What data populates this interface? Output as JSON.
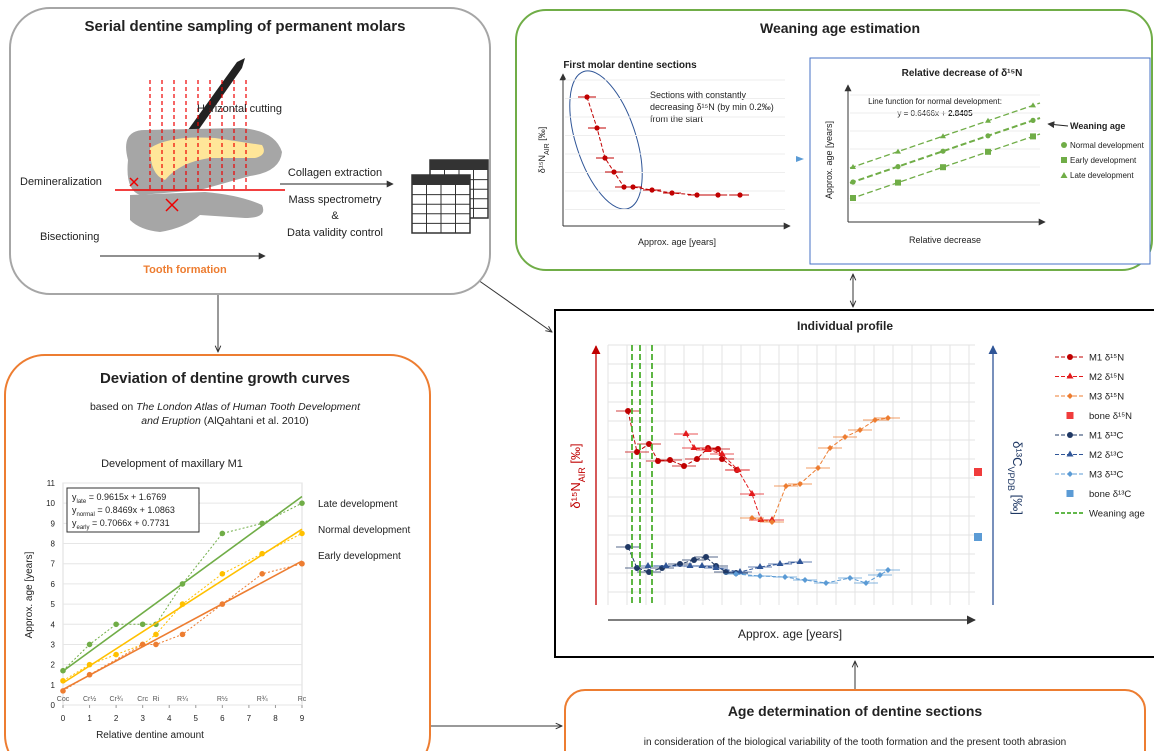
{
  "sampling": {
    "title": "Serial dentine sampling of permanent molars",
    "cutting": "Horizontal cutting",
    "demineralization": "Demineralization",
    "bisectioning": "Bisectioning",
    "formation": "Tooth formation",
    "steps": [
      "Collagen extraction",
      "Mass spectrometry",
      "&",
      "Data validity control"
    ]
  },
  "weaning": {
    "title": "Weaning age estimation",
    "left": {
      "title": "First molar dentine sections",
      "y_label": {
        "main": "δ¹⁵N",
        "sub": "AIR",
        "unit": " [‰]"
      },
      "note": [
        "Sections with constantly",
        "decreasing δ¹⁵N (by min 0.2‰)",
        "from the start"
      ],
      "x_label": "Approx. age [years]"
    },
    "right": {
      "title": "Relative decrease of δ¹⁵N",
      "function": [
        "Line function for normal development:",
        "y = 0.6466x + ",
        "2.8405"
      ],
      "weaning_age": "Weaning age",
      "legend": [
        "Normal development",
        "Early development",
        "Late development"
      ],
      "x_label": "Relative decrease",
      "y_label": "Approx. age [years]"
    }
  },
  "deviation": {
    "title": "Deviation of dentine growth curves",
    "source": [
      "based on ",
      "The London Atlas of Human Tooth Development",
      "and Eruption",
      " (AlQahtani et al. 2010)"
    ],
    "growth_chart": {
      "type": "scatter",
      "title": "Development of maxillary M1",
      "x_label": "Relative dentine amount",
      "y_label": "Approx. age [years]",
      "xlim": [
        0,
        9
      ],
      "ylim": [
        0,
        11
      ],
      "xticks": [
        0,
        1,
        2,
        3,
        4,
        5,
        6,
        7,
        8,
        9
      ],
      "yticks": [
        0,
        1,
        2,
        3,
        4,
        5,
        6,
        7,
        8,
        9,
        10,
        11
      ],
      "stages": [
        {
          "value": 0,
          "label": "Coc"
        },
        {
          "value": 1,
          "label": "Cr½"
        },
        {
          "value": 2,
          "label": "Cr¾"
        },
        {
          "value": 3,
          "label": "Crc"
        },
        {
          "value": 3.5,
          "label": "Ri"
        },
        {
          "value": 4.5,
          "label": "R¼"
        },
        {
          "value": 6,
          "label": "R½"
        },
        {
          "value": 7.5,
          "label": "R¾"
        },
        {
          "value": 9,
          "label": "Rc"
        }
      ],
      "equations": [
        {
          "var": "y",
          "sub": "late",
          "rhs": " = 0.9615x + 1.6769"
        },
        {
          "var": "y",
          "sub": "normal",
          "rhs": " = 0.8469x + 1.0863"
        },
        {
          "var": "y",
          "sub": "early",
          "rhs": " = 0.7066x + 0.7731"
        }
      ],
      "series": [
        {
          "name": "Late development",
          "color": "#70ad47",
          "x": [
            0,
            1,
            2,
            3,
            3.5,
            4.5,
            6,
            7.5,
            9
          ],
          "values": [
            1.7,
            3,
            4,
            4,
            4,
            6,
            8.5,
            9,
            10
          ],
          "fit": [
            1.68,
            10.33
          ]
        },
        {
          "name": "Normal development",
          "color": "#ffc000",
          "x": [
            0,
            1,
            2,
            3,
            3.5,
            4.5,
            6,
            7.5,
            9
          ],
          "values": [
            1.2,
            2,
            2.5,
            3,
            3.5,
            5,
            6.5,
            7.5,
            8.5
          ],
          "fit": [
            1.09,
            8.71
          ]
        },
        {
          "name": "Early development",
          "color": "#ed7d31",
          "x": [
            0,
            1,
            3,
            3.5,
            4.5,
            6,
            7.5,
            9
          ],
          "values": [
            0.7,
            1.5,
            3,
            3,
            3.5,
            5,
            6.5,
            7
          ],
          "fit": [
            0.77,
            7.13
          ]
        }
      ]
    }
  },
  "profile": {
    "title": "Individual profile",
    "x_label": "Approx. age [years]",
    "left_label": {
      "main": "δ¹⁵N",
      "sub": "AIR",
      "unit": " [‰]"
    },
    "right_label": {
      "main": "δ¹³C",
      "sub": "VPDB",
      "unit": " [‰]"
    },
    "legend": [
      {
        "label": "M1 δ¹⁵N",
        "color": "#c00000",
        "marker": "circle"
      },
      {
        "label": "M2 δ¹⁵N",
        "color": "#e31a1c",
        "marker": "triangle"
      },
      {
        "label": "M3 δ¹⁵N",
        "color": "#ed7d31",
        "marker": "diamond"
      },
      {
        "label": "bone δ¹⁵N",
        "color": "#f03c3c",
        "marker": "square"
      },
      {
        "label": "M1 δ¹³C",
        "color": "#1f3864",
        "marker": "circle"
      },
      {
        "label": "M2 δ¹³C",
        "color": "#2f5597",
        "marker": "triangle"
      },
      {
        "label": "M3 δ¹³C",
        "color": "#5b9bd5",
        "marker": "diamond"
      },
      {
        "label": "bone δ¹³C",
        "color": "#5b9bd5",
        "marker": "square"
      },
      {
        "label": "Weaning age",
        "color": "#4caf30",
        "marker": "dash"
      }
    ]
  },
  "age_determination": {
    "title": "Age determination of dentine sections",
    "text": "in consideration of the biological variability of the tooth formation and the present tooth abrasion"
  }
}
